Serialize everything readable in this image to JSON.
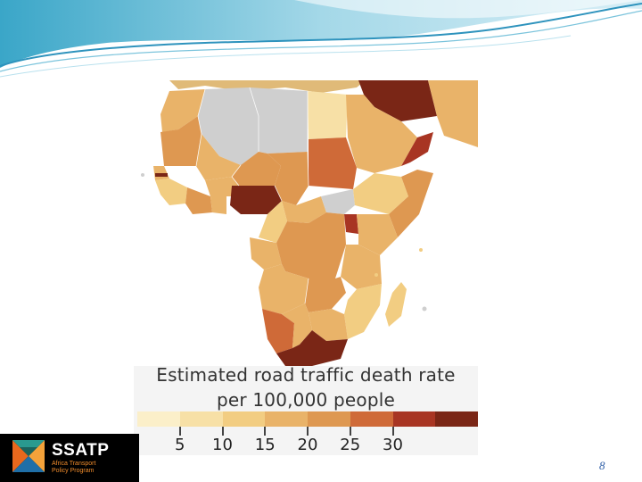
{
  "slide": {
    "page_number": "8"
  },
  "map": {
    "title_line1": "Estimated road traffic death rate",
    "title_line2": "per 100,000 people",
    "no_data_color": "#cfcfcf",
    "legend": {
      "colors": [
        "#fbefc9",
        "#f7e0a6",
        "#f2cd82",
        "#e9b369",
        "#de9851",
        "#cf6a38",
        "#a83523",
        "#7a2616"
      ],
      "tick_values": [
        5,
        10,
        15,
        20,
        25,
        30
      ],
      "tick_labels": [
        "5",
        "10",
        "15",
        "20",
        "25",
        "30"
      ]
    }
  },
  "logo": {
    "name": "SSATP",
    "subtitle_line1": "Africa Transport",
    "subtitle_line2": "Policy Program",
    "accent_color": "#f08c2c"
  }
}
